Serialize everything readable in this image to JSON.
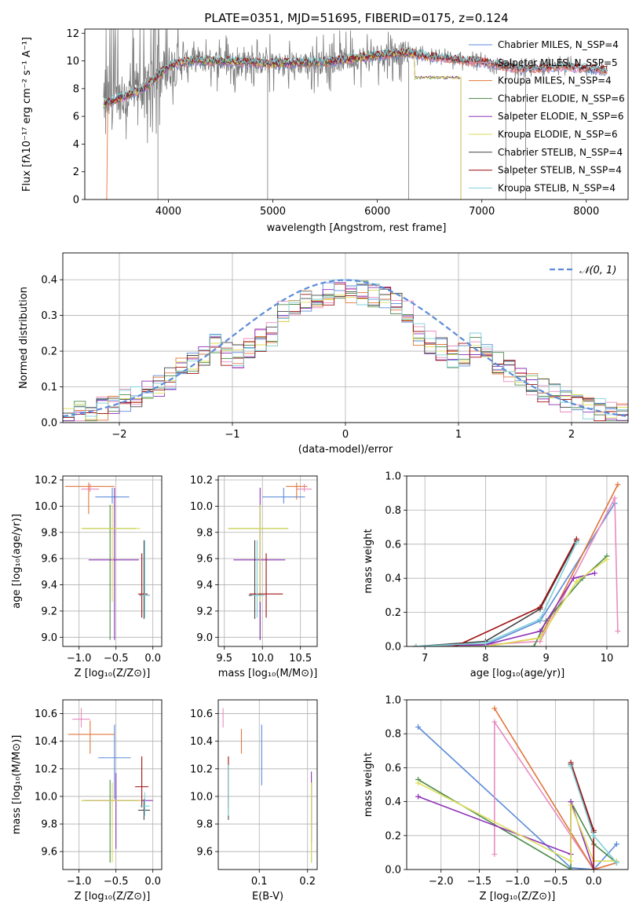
{
  "colors": {
    "chabrier_miles": "#5b8bd9",
    "salpeter_miles": "#e88cc0",
    "kroupa_miles": "#e0763a",
    "chabrier_elodie": "#4d8a4a",
    "salpeter_elodie": "#8e30b8",
    "kroupa_elodie": "#dede5a",
    "chabrier_stelib": "#444444",
    "salpeter_stelib": "#a01010",
    "kroupa_stelib": "#7fd0d8",
    "gauss": "#5b8bd9",
    "data_gray": "#7a7a7a"
  },
  "chart_data": [
    {
      "id": "spectrum",
      "type": "line",
      "title": "PLATE=0351, MJD=51695, FIBERID=0175, z=0.124",
      "xlabel": "wavelength [Angstrom, rest frame]",
      "ylabel": "Flux [fλ10⁻¹⁷ erg cm⁻² s⁻¹ A⁻¹]",
      "xlim": [
        3200,
        8400
      ],
      "ylim": [
        0,
        12.3
      ],
      "xticks": [
        4000,
        5000,
        6000,
        7000,
        8000
      ],
      "yticks": [
        0,
        2,
        4,
        6,
        8,
        10,
        12
      ],
      "legend_position": "top-right",
      "legend": [
        {
          "label": "Chabrier MILES, N_SSP=4",
          "color_key": "chabrier_miles"
        },
        {
          "label": "Salpeter MILES, N_SSP=5",
          "color_key": "salpeter_miles"
        },
        {
          "label": "Kroupa MILES, N_SSP=4",
          "color_key": "kroupa_miles"
        },
        {
          "label": "Chabrier ELODIE, N_SSP=6",
          "color_key": "chabrier_elodie"
        },
        {
          "label": "Salpeter ELODIE, N_SSP=6",
          "color_key": "salpeter_elodie"
        },
        {
          "label": "Kroupa ELODIE, N_SSP=6",
          "color_key": "kroupa_elodie"
        },
        {
          "label": "Chabrier STELIB, N_SSP=4",
          "color_key": "chabrier_stelib"
        },
        {
          "label": "Salpeter STELIB, N_SSP=4",
          "color_key": "salpeter_stelib"
        },
        {
          "label": "Kroupa STELIB, N_SSP=4",
          "color_key": "kroupa_stelib"
        }
      ],
      "continuum": {
        "x": [
          3350,
          3500,
          3700,
          3800,
          4000,
          4200,
          4500,
          5000,
          5500,
          6000,
          6300,
          6500,
          7000,
          7400,
          7800,
          8200
        ],
        "y": [
          6.8,
          7.2,
          7.8,
          8.2,
          9.6,
          10.0,
          10.0,
          9.8,
          9.9,
          10.4,
          10.6,
          10.3,
          9.9,
          9.4,
          9.6,
          9.3
        ]
      },
      "elodie_end_x": 6800,
      "elodie_drop_y": 8.8
    },
    {
      "id": "residuals",
      "type": "area",
      "xlabel": "(data-model)/error",
      "ylabel": "Normed distribution",
      "xlim": [
        -2.5,
        2.5
      ],
      "ylim": [
        0,
        0.475
      ],
      "xticks": [
        -2,
        -1,
        0,
        1,
        2
      ],
      "yticks": [
        0,
        0.1,
        0.2,
        0.3,
        0.4
      ],
      "legend": [
        {
          "label": "𝒩(0, 1)",
          "color_key": "gauss"
        }
      ],
      "legend_position": "top-right",
      "bin_width": 0.1
    },
    {
      "id": "age_vs_Z",
      "type": "scatter",
      "xlabel": "Z [log₁₀(Z/Z⊙)]",
      "ylabel": "age  [log₁₀(age/yr)]",
      "xlim": [
        -1.22,
        0.12
      ],
      "ylim": [
        8.93,
        10.23
      ],
      "xticks": [
        -1.0,
        -0.5,
        0.0
      ],
      "yticks": [
        9.0,
        9.2,
        9.4,
        9.6,
        9.8,
        10.0,
        10.2
      ],
      "points": [
        {
          "key": "chabrier_miles",
          "x": -0.55,
          "y": 10.07,
          "xe": [
            0.23,
            0.23
          ],
          "ye": [
            0.05,
            0.07
          ]
        },
        {
          "key": "salpeter_miles",
          "x": -0.85,
          "y": 10.13,
          "xe": [
            0.12,
            0.12
          ],
          "ye": [
            0.02,
            0.04
          ]
        },
        {
          "key": "kroupa_miles",
          "x": -0.87,
          "y": 10.15,
          "xe": [
            0.32,
            0.35
          ],
          "ye": [
            0.21,
            0.03
          ]
        },
        {
          "key": "chabrier_elodie",
          "x": -0.58,
          "y": 9.83,
          "xe": [
            0.37,
            0.35
          ],
          "ye": [
            0.85,
            0.18
          ]
        },
        {
          "key": "salpeter_elodie",
          "x": -0.52,
          "y": 9.59,
          "xe": [
            0.35,
            0.33
          ],
          "ye": [
            0.61,
            0.55
          ]
        },
        {
          "key": "kroupa_elodie",
          "x": -0.55,
          "y": 9.83,
          "xe": [
            0.42,
            0.38
          ],
          "ye": [
            0.56,
            0.18
          ]
        },
        {
          "key": "chabrier_stelib",
          "x": -0.12,
          "y": 9.32,
          "xe": [
            0.06,
            0.08
          ],
          "ye": [
            0.18,
            0.42
          ]
        },
        {
          "key": "salpeter_stelib",
          "x": -0.15,
          "y": 9.33,
          "xe": [
            0.05,
            0.08
          ],
          "ye": [
            0.18,
            0.31
          ]
        },
        {
          "key": "kroupa_stelib",
          "x": -0.11,
          "y": 9.32,
          "xe": [
            0.05,
            0.07
          ],
          "ye": [
            0.17,
            0.42
          ]
        }
      ]
    },
    {
      "id": "age_vs_mass",
      "type": "scatter",
      "xlabel": "mass [log₁₀(M/M⊙)]",
      "ylabel": "",
      "xlim": [
        9.42,
        10.72
      ],
      "ylim": [
        8.93,
        10.23
      ],
      "xticks": [
        9.5,
        10.0,
        10.5
      ],
      "yticks": [
        9.0,
        9.2,
        9.4,
        9.6,
        9.8,
        10.0,
        10.2
      ],
      "points": [
        {
          "key": "chabrier_miles",
          "x": 10.28,
          "y": 10.07,
          "xe": [
            0.28,
            0.28
          ],
          "ye": [
            0.05,
            0.07
          ]
        },
        {
          "key": "salpeter_miles",
          "x": 10.55,
          "y": 10.13,
          "xe": [
            0.1,
            0.1
          ],
          "ye": [
            0.02,
            0.04
          ]
        },
        {
          "key": "kroupa_miles",
          "x": 10.45,
          "y": 10.15,
          "xe": [
            0.14,
            0.14
          ],
          "ye": [
            0.1,
            0.03
          ]
        },
        {
          "key": "chabrier_elodie",
          "x": 9.97,
          "y": 9.83,
          "xe": [
            0.42,
            0.37
          ],
          "ye": [
            0.85,
            0.18
          ]
        },
        {
          "key": "salpeter_elodie",
          "x": 9.97,
          "y": 9.59,
          "xe": [
            0.35,
            0.33
          ],
          "ye": [
            0.61,
            0.55
          ]
        },
        {
          "key": "kroupa_elodie",
          "x": 9.97,
          "y": 9.83,
          "xe": [
            0.42,
            0.37
          ],
          "ye": [
            0.56,
            0.18
          ]
        },
        {
          "key": "chabrier_stelib",
          "x": 9.9,
          "y": 9.32,
          "xe": [
            0.08,
            0.1
          ],
          "ye": [
            0.18,
            0.42
          ]
        },
        {
          "key": "salpeter_stelib",
          "x": 10.05,
          "y": 9.33,
          "xe": [
            0.22,
            0.22
          ],
          "ye": [
            0.18,
            0.31
          ]
        },
        {
          "key": "kroupa_stelib",
          "x": 9.93,
          "y": 9.32,
          "xe": [
            0.07,
            0.1
          ],
          "ye": [
            0.17,
            0.42
          ]
        }
      ]
    },
    {
      "id": "weight_vs_age",
      "type": "line",
      "xlabel": "age  [log₁₀(age/yr)]",
      "ylabel": "mass weight",
      "xlim": [
        6.7,
        10.35
      ],
      "ylim": [
        0,
        1.0
      ],
      "xticks": [
        7,
        8,
        9,
        10
      ],
      "yticks": [
        0.0,
        0.2,
        0.4,
        0.6,
        0.8,
        1.0
      ],
      "series": [
        {
          "key": "chabrier_miles",
          "x": [
            6.85,
            8.0,
            8.9,
            10.13
          ],
          "y": [
            0.0,
            0.01,
            0.15,
            0.84
          ]
        },
        {
          "key": "salpeter_miles",
          "x": [
            6.85,
            8.0,
            8.9,
            10.13,
            10.18
          ],
          "y": [
            0.0,
            0.01,
            0.03,
            0.87,
            0.09
          ]
        },
        {
          "key": "kroupa_miles",
          "x": [
            6.85,
            8.0,
            8.9,
            10.18
          ],
          "y": [
            0.0,
            0.0,
            0.05,
            0.95
          ]
        },
        {
          "key": "chabrier_elodie",
          "x": [
            6.85,
            8.0,
            8.8,
            9.0,
            9.6,
            10.0
          ],
          "y": [
            0.0,
            0.0,
            0.0,
            0.15,
            0.4,
            0.53
          ]
        },
        {
          "key": "salpeter_elodie",
          "x": [
            6.85,
            8.0,
            8.9,
            9.45,
            9.8
          ],
          "y": [
            0.0,
            0.01,
            0.09,
            0.4,
            0.43
          ]
        },
        {
          "key": "kroupa_elodie",
          "x": [
            6.85,
            8.0,
            8.9,
            9.5,
            10.0
          ],
          "y": [
            0.0,
            0.0,
            0.05,
            0.38,
            0.51
          ]
        },
        {
          "key": "chabrier_stelib",
          "x": [
            6.85,
            8.0,
            8.9,
            9.5
          ],
          "y": [
            0.0,
            0.03,
            0.22,
            0.62
          ]
        },
        {
          "key": "salpeter_stelib",
          "x": [
            7.5,
            8.9,
            9.5
          ],
          "y": [
            0.0,
            0.23,
            0.63
          ]
        },
        {
          "key": "kroupa_stelib",
          "x": [
            6.85,
            8.0,
            8.9,
            9.5
          ],
          "y": [
            0.0,
            0.02,
            0.16,
            0.61
          ]
        }
      ]
    },
    {
      "id": "mass_vs_Z",
      "type": "scatter",
      "xlabel": "Z [log₁₀(Z/Z⊙)]",
      "ylabel": "mass [log₁₀(M/M⊙)]",
      "xlim": [
        -1.22,
        0.12
      ],
      "ylim": [
        9.47,
        10.7
      ],
      "xticks": [
        -1.0,
        -0.5,
        0.0
      ],
      "yticks": [
        9.6,
        9.8,
        10.0,
        10.2,
        10.4,
        10.6
      ],
      "points": [
        {
          "key": "chabrier_miles",
          "x": -0.52,
          "y": 10.28,
          "xe": [
            0.22,
            0.22
          ],
          "ye": [
            0.3,
            0.24
          ]
        },
        {
          "key": "salpeter_miles",
          "x": -0.97,
          "y": 10.56,
          "xe": [
            0.12,
            0.12
          ],
          "ye": [
            0.06,
            0.08
          ]
        },
        {
          "key": "kroupa_miles",
          "x": -0.85,
          "y": 10.45,
          "xe": [
            0.3,
            0.33
          ],
          "ye": [
            0.14,
            0.1
          ]
        },
        {
          "key": "chabrier_elodie",
          "x": -0.58,
          "y": 9.97,
          "xe": [
            0.38,
            0.38
          ],
          "ye": [
            0.45,
            0.15
          ]
        },
        {
          "key": "salpeter_elodie",
          "x": -0.5,
          "y": 9.97,
          "xe": [
            0.42,
            0.5
          ],
          "ye": [
            0.35,
            0.2
          ]
        },
        {
          "key": "kroupa_elodie",
          "x": -0.55,
          "y": 9.97,
          "xe": [
            0.42,
            0.4
          ],
          "ye": [
            0.45,
            0.13
          ]
        },
        {
          "key": "chabrier_stelib",
          "x": -0.12,
          "y": 9.9,
          "xe": [
            0.08,
            0.08
          ],
          "ye": [
            0.07,
            0.08
          ]
        },
        {
          "key": "salpeter_stelib",
          "x": -0.15,
          "y": 10.07,
          "xe": [
            0.09,
            0.09
          ],
          "ye": [
            0.15,
            0.22
          ]
        },
        {
          "key": "kroupa_stelib",
          "x": -0.11,
          "y": 9.93,
          "xe": [
            0.07,
            0.07
          ],
          "ye": [
            0.07,
            0.1
          ]
        }
      ]
    },
    {
      "id": "mass_vs_ebv",
      "type": "scatter",
      "xlabel": "E(B-V)",
      "ylabel": "",
      "xlim": [
        0.015,
        0.22
      ],
      "ylim": [
        9.47,
        10.7
      ],
      "xticks": [
        0.1,
        0.2
      ],
      "yticks": [
        9.6,
        9.8,
        10.0,
        10.2,
        10.4,
        10.6
      ],
      "points": [
        {
          "key": "chabrier_miles",
          "x": 0.105,
          "y": 10.28,
          "xe": [
            0,
            0
          ],
          "ye": [
            0.2,
            0.24
          ]
        },
        {
          "key": "salpeter_miles",
          "x": 0.025,
          "y": 10.56,
          "xe": [
            0,
            0
          ],
          "ye": [
            0.06,
            0.08
          ]
        },
        {
          "key": "kroupa_miles",
          "x": 0.063,
          "y": 10.45,
          "xe": [
            0,
            0
          ],
          "ye": [
            0.14,
            0.04
          ]
        },
        {
          "key": "chabrier_elodie",
          "x": 0.208,
          "y": 9.97,
          "xe": [
            0,
            0
          ],
          "ye": [
            0.45,
            0.13
          ]
        },
        {
          "key": "salpeter_elodie",
          "x": 0.208,
          "y": 9.97,
          "xe": [
            0,
            0
          ],
          "ye": [
            0.3,
            0.21
          ]
        },
        {
          "key": "kroupa_elodie",
          "x": 0.208,
          "y": 9.97,
          "xe": [
            0,
            0
          ],
          "ye": [
            0.45,
            0.13
          ]
        },
        {
          "key": "chabrier_stelib",
          "x": 0.036,
          "y": 9.9,
          "xe": [
            0,
            0
          ],
          "ye": [
            0.07,
            0.33
          ]
        },
        {
          "key": "salpeter_stelib",
          "x": 0.036,
          "y": 10.07,
          "xe": [
            0,
            0
          ],
          "ye": [
            0.15,
            0.22
          ]
        },
        {
          "key": "kroupa_stelib",
          "x": 0.036,
          "y": 9.93,
          "xe": [
            0,
            0
          ],
          "ye": [
            0.07,
            0.3
          ]
        }
      ]
    },
    {
      "id": "weight_vs_Z",
      "type": "line",
      "xlabel": "Z [log₁₀(Z/Z⊙)]",
      "ylabel": "mass weight",
      "xlim": [
        -2.45,
        0.45
      ],
      "ylim": [
        0,
        1.0
      ],
      "xticks": [
        -2.0,
        -1.5,
        -1.0,
        -0.5,
        0.0
      ],
      "yticks": [
        0.0,
        0.2,
        0.4,
        0.6,
        0.8,
        1.0
      ],
      "series": [
        {
          "key": "chabrier_miles",
          "x": [
            -2.3,
            -0.3,
            0.0,
            0.3
          ],
          "y": [
            0.84,
            0.01,
            0.0,
            0.15
          ]
        },
        {
          "key": "salpeter_miles",
          "x": [
            -1.3,
            -1.3,
            0.0,
            0.3
          ],
          "y": [
            0.09,
            0.87,
            0.0,
            0.04
          ]
        },
        {
          "key": "kroupa_miles",
          "x": [
            -1.3,
            0.0,
            0.3
          ],
          "y": [
            0.95,
            0.0,
            0.04
          ]
        },
        {
          "key": "chabrier_elodie",
          "x": [
            -2.3,
            -0.3,
            -0.3,
            0.0,
            0.3
          ],
          "y": [
            0.53,
            0.0,
            0.4,
            0.15,
            0.04
          ]
        },
        {
          "key": "salpeter_elodie",
          "x": [
            -2.3,
            -0.3,
            -0.3,
            0.0
          ],
          "y": [
            0.43,
            0.09,
            0.4,
            0.0
          ]
        },
        {
          "key": "kroupa_elodie",
          "x": [
            -2.3,
            -0.3,
            -0.3,
            0.0,
            0.3
          ],
          "y": [
            0.51,
            0.05,
            0.38,
            0.05,
            0.05
          ]
        },
        {
          "key": "chabrier_stelib",
          "x": [
            -0.3,
            0.0,
            0.0
          ],
          "y": [
            0.62,
            0.22,
            0.0
          ]
        },
        {
          "key": "salpeter_stelib",
          "x": [
            -0.3,
            0.0,
            0.0
          ],
          "y": [
            0.63,
            0.23,
            0.0
          ]
        },
        {
          "key": "kroupa_stelib",
          "x": [
            -0.3,
            0.0,
            0.3
          ],
          "y": [
            0.61,
            0.2,
            0.04
          ]
        }
      ]
    }
  ]
}
